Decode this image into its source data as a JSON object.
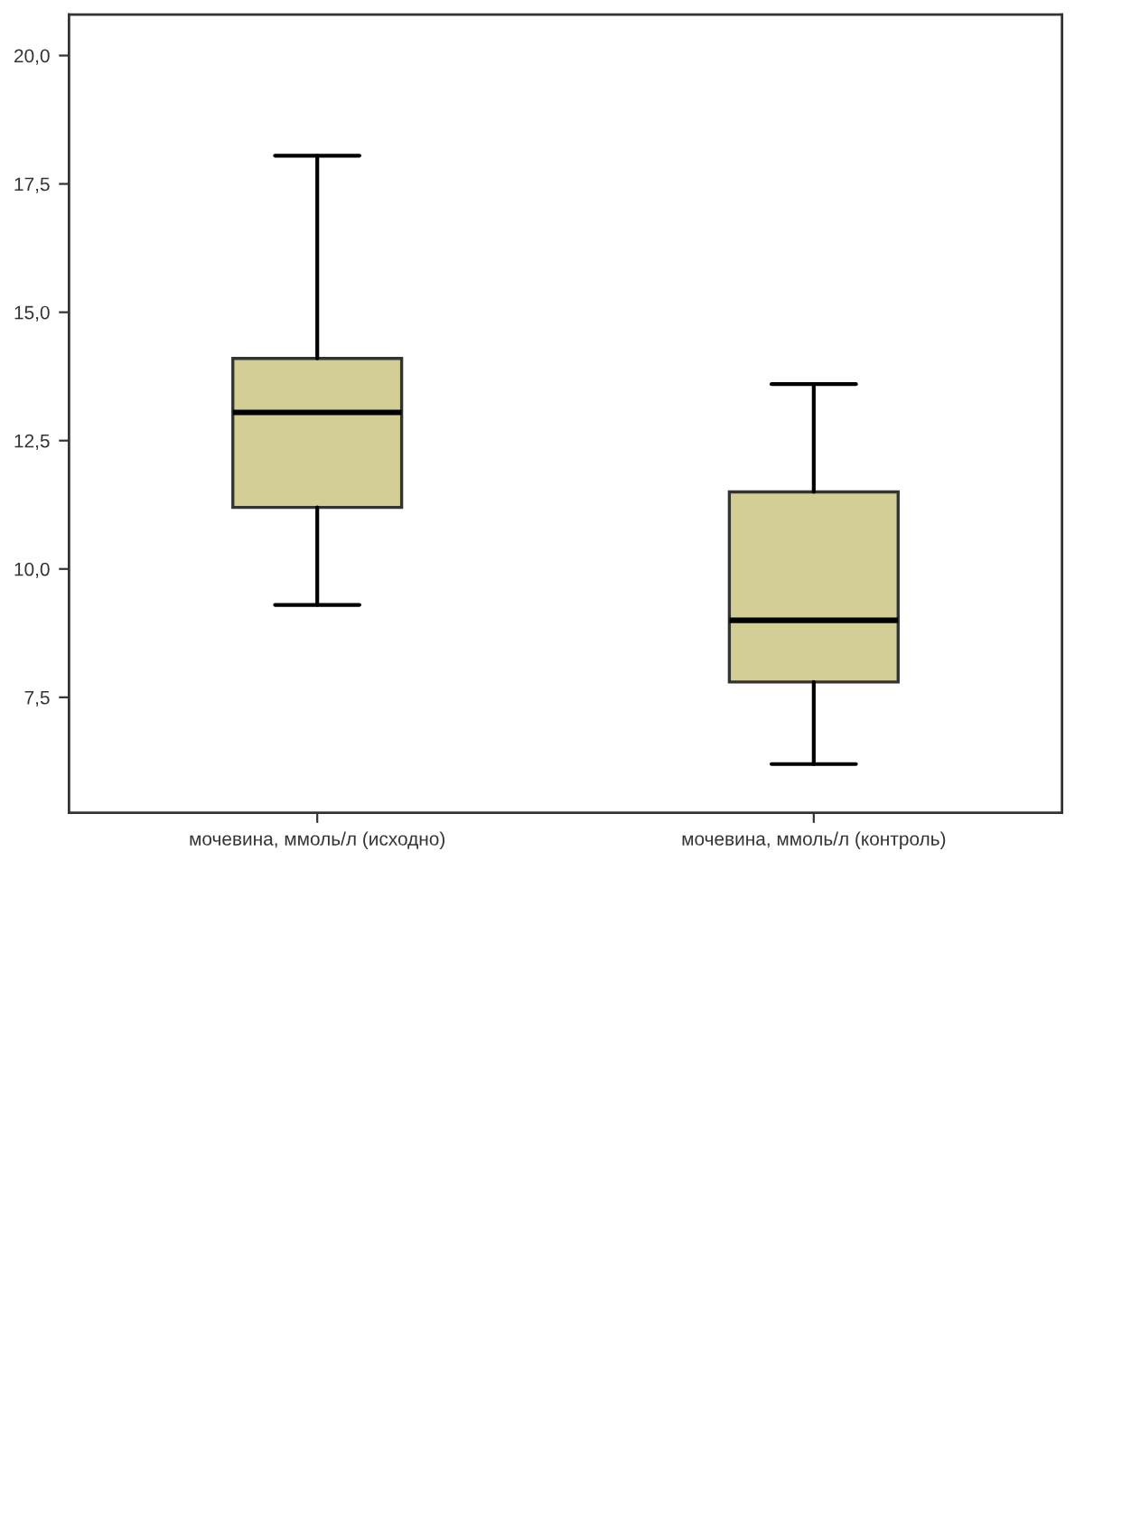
{
  "chart_data": {
    "type": "box",
    "categories": [
      "мочевина, ммоль/л (исходно)",
      "мочевина, ммоль/л (контроль)"
    ],
    "boxes": [
      {
        "low": 9.3,
        "q1": 11.2,
        "median": 13.05,
        "q3": 14.1,
        "high": 18.05
      },
      {
        "low": 6.2,
        "q1": 7.8,
        "median": 9.0,
        "q3": 11.5,
        "high": 13.6
      }
    ],
    "color": "#d3cd96",
    "ylim": [
      5.25,
      20.8
    ],
    "yticks": [
      {
        "value": 7.5,
        "label": "7,5"
      },
      {
        "value": 10.0,
        "label": "10,0"
      },
      {
        "value": 12.5,
        "label": "12,5"
      },
      {
        "value": 15.0,
        "label": "15,0"
      },
      {
        "value": 17.5,
        "label": "17,5"
      },
      {
        "value": 20.0,
        "label": "20,0"
      }
    ],
    "grid": false
  }
}
